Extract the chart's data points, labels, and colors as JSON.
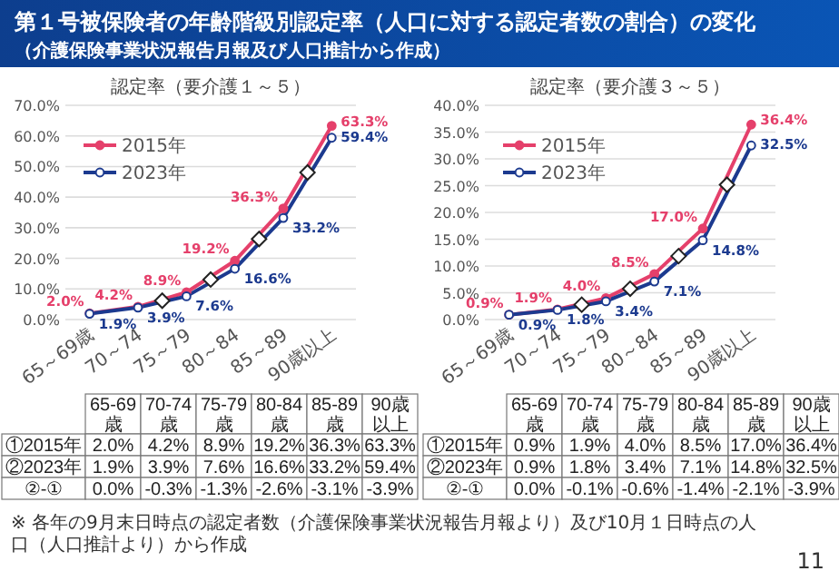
{
  "chart_data": [
    {
      "type": "line",
      "title": "認定率（要介護１～５）",
      "categories": [
        "65～69歳",
        "70～74",
        "75～79",
        "80～84",
        "85～89",
        "90歳以上"
      ],
      "series": [
        {
          "name": "2015年",
          "color": "#e5406b",
          "values": [
            2.0,
            4.2,
            8.9,
            19.2,
            36.3,
            63.3
          ],
          "value_labels": [
            "2.0%",
            "4.2%",
            "8.9%",
            "19.2%",
            "36.3%",
            "63.3%"
          ]
        },
        {
          "name": "2023年",
          "color": "#1c3a8f",
          "values": [
            1.9,
            3.9,
            7.6,
            16.6,
            33.2,
            59.4
          ],
          "value_labels": [
            "1.9%",
            "3.9%",
            "7.6%",
            "16.6%",
            "33.2%",
            "59.4%"
          ]
        }
      ],
      "ylim": [
        0,
        70
      ],
      "yticks": [
        {
          "value": 0,
          "label": "0.0%"
        },
        {
          "value": 10,
          "label": "10.0%"
        },
        {
          "value": 20,
          "label": "20.0%"
        },
        {
          "value": 30,
          "label": "30.0%"
        },
        {
          "value": 40,
          "label": "40.0%"
        },
        {
          "value": 50,
          "label": "50.0%"
        },
        {
          "value": 60,
          "label": "60.0%"
        },
        {
          "value": 70,
          "label": "70.0%"
        }
      ],
      "grid": "y",
      "legend": "top left",
      "marker": "circle",
      "annotations": [
        "65-69歳",
        "70-74歳",
        "75-79歳",
        "80-84歳",
        "85-89歳",
        "90歳以上",
        "①2015年",
        "②2023年",
        "②-①",
        "0.0%",
        "-0.3%",
        "-1.3%",
        "-2.6%",
        "-3.1%",
        "-3.9%",
        "第１号被保険者の年齢階級別認定率（人口に対する認定者数の割合）の変化",
        "（介護保険事業状況報告月報及び人口推計から作成）"
      ]
    },
    {
      "type": "line",
      "title": "認定率（要介護３～５）",
      "categories": [
        "65～69歳",
        "70～74",
        "75～79",
        "80～84",
        "85～89",
        "90歳以上"
      ],
      "series": [
        {
          "name": "2015年",
          "color": "#e5406b",
          "values": [
            0.9,
            1.9,
            4.0,
            8.5,
            17.0,
            36.4
          ],
          "value_labels": [
            "0.9%",
            "1.9%",
            "4.0%",
            "8.5%",
            "17.0%",
            "36.4%"
          ]
        },
        {
          "name": "2023年",
          "color": "#1c3a8f",
          "values": [
            0.9,
            1.8,
            3.4,
            7.1,
            14.8,
            32.5
          ],
          "value_labels": [
            "0.9%",
            "1.8%",
            "3.4%",
            "7.1%",
            "14.8%",
            "32.5%"
          ]
        }
      ],
      "ylim": [
        0,
        40
      ],
      "yticks": [
        {
          "value": 0,
          "label": "0.0%"
        },
        {
          "value": 5,
          "label": "5.0%"
        },
        {
          "value": 10,
          "label": "10.0%"
        },
        {
          "value": 15,
          "label": "15.0%"
        },
        {
          "value": 20,
          "label": "20.0%"
        },
        {
          "value": 25,
          "label": "25.0%"
        },
        {
          "value": 30,
          "label": "30.0%"
        },
        {
          "value": 35,
          "label": "35.0%"
        },
        {
          "value": 40,
          "label": "40.0%"
        }
      ],
      "grid": "y",
      "legend": "top left",
      "marker": "circle",
      "annotations": [
        "65-69歳",
        "70-74歳",
        "75-79歳",
        "80-84歳",
        "85-89歳",
        "90歳以上",
        "①2015年",
        "②2023年",
        "②-①",
        "0.0%",
        "-0.1%",
        "-0.6%",
        "-1.4%",
        "-2.1%",
        "-3.9%",
        "※ 各年の9月末日時点の認定者数（介護保険事業状況報告月報より）及び10月１日時点の人口（人口推計より）から作成",
        "11"
      ]
    }
  ]
}
